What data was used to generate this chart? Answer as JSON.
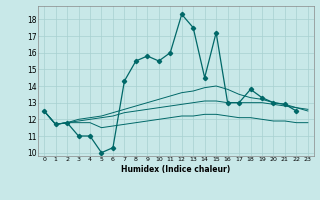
{
  "xlabel": "Humidex (Indice chaleur)",
  "bg_color": "#c8e8e8",
  "grid_color": "#a8d0d0",
  "line_color": "#006868",
  "xlim": [
    -0.5,
    23.5
  ],
  "ylim": [
    9.8,
    18.8
  ],
  "yticks": [
    10,
    11,
    12,
    13,
    14,
    15,
    16,
    17,
    18
  ],
  "xticks": [
    0,
    1,
    2,
    3,
    4,
    5,
    6,
    7,
    8,
    9,
    10,
    11,
    12,
    13,
    14,
    15,
    16,
    17,
    18,
    19,
    20,
    21,
    22,
    23
  ],
  "series": [
    [
      12.5,
      11.7,
      11.8,
      11.0,
      11.0,
      10.0,
      10.3,
      14.3,
      15.5,
      15.8,
      15.5,
      16.0,
      18.3,
      17.5,
      14.5,
      17.2,
      13.0,
      13.0,
      13.8,
      13.3,
      13.0,
      12.9,
      12.5,
      null
    ],
    [
      12.5,
      11.7,
      11.8,
      12.0,
      12.1,
      12.2,
      12.4,
      12.6,
      12.8,
      13.0,
      13.2,
      13.4,
      13.6,
      13.7,
      13.9,
      14.0,
      13.8,
      13.5,
      13.3,
      13.2,
      13.0,
      12.9,
      12.7,
      12.5
    ],
    [
      12.5,
      11.7,
      11.8,
      11.8,
      11.8,
      11.5,
      11.6,
      11.7,
      11.8,
      11.9,
      12.0,
      12.1,
      12.2,
      12.2,
      12.3,
      12.3,
      12.2,
      12.1,
      12.1,
      12.0,
      11.9,
      11.9,
      11.8,
      11.8
    ],
    [
      12.5,
      11.7,
      11.8,
      11.9,
      12.0,
      12.1,
      12.2,
      12.4,
      12.5,
      12.6,
      12.7,
      12.8,
      12.9,
      13.0,
      13.1,
      13.1,
      13.0,
      13.0,
      13.0,
      13.0,
      12.9,
      12.8,
      12.7,
      12.6
    ]
  ]
}
